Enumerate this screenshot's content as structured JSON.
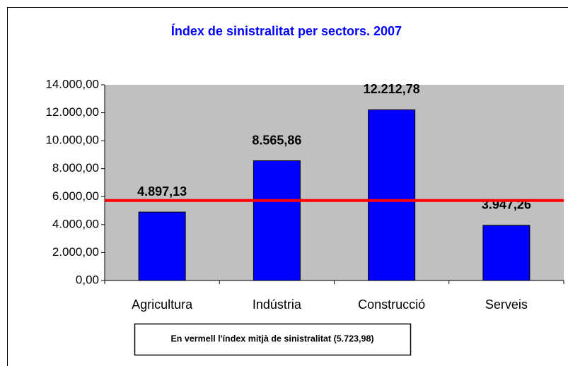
{
  "chart_data": {
    "type": "bar",
    "title": "Índex de sinistralitat per sectors. 2007",
    "categories": [
      "Agricultura",
      "Indústria",
      "Construcció",
      "Serveis"
    ],
    "values": [
      4897.13,
      8565.86,
      12212.78,
      3947.26
    ],
    "value_labels": [
      "4.897,13",
      "8.565,86",
      "12.212,78",
      "3.947,26"
    ],
    "color": "#0000ff",
    "ylim": [
      0,
      14000
    ],
    "yticks": [
      {
        "value": 0,
        "label": "0,00"
      },
      {
        "value": 2000,
        "label": "2.000,00"
      },
      {
        "value": 4000,
        "label": "4.000,00"
      },
      {
        "value": 6000,
        "label": "6.000,00"
      },
      {
        "value": 8000,
        "label": "8.000,00"
      },
      {
        "value": 10000,
        "label": "10.000,00"
      },
      {
        "value": 12000,
        "label": "12.000,00"
      },
      {
        "value": 14000,
        "label": "14.000,00"
      }
    ],
    "grid": false,
    "reference_line": {
      "value": 5723.98,
      "color": "#ff0000"
    },
    "annotation": "En vermell l'índex mitjà de sinistralitat (5.723,98)"
  }
}
